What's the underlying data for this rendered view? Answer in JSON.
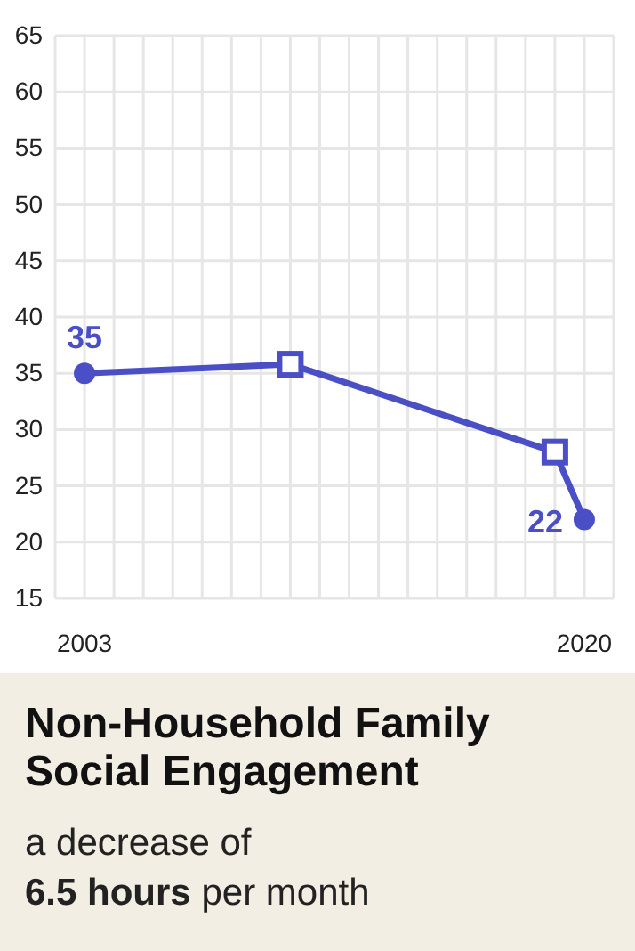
{
  "chart_data": {
    "type": "line",
    "title": "Non-Household Family Social Engagement",
    "subtitle": "a decrease of",
    "annotations": [
      "6.5 hours",
      "per month"
    ],
    "xlim": [
      2002,
      2021
    ],
    "xticks": [
      {
        "value": 2002,
        "label": null
      },
      2003,
      {
        "value": 2004,
        "label": null
      },
      {
        "value": 2005,
        "label": null
      },
      {
        "value": 2006,
        "label": null
      },
      {
        "value": 2007,
        "label": null
      },
      {
        "value": 2008,
        "label": null
      },
      {
        "value": 2009,
        "label": null
      },
      {
        "value": 2010,
        "label": null
      },
      {
        "value": 2011,
        "label": null
      },
      {
        "value": 2012,
        "label": null
      },
      {
        "value": 2013,
        "label": null
      },
      {
        "value": 2014,
        "label": null
      },
      {
        "value": 2015,
        "label": null
      },
      {
        "value": 2016,
        "label": null
      },
      {
        "value": 2017,
        "label": null
      },
      {
        "value": 2018,
        "label": null
      },
      {
        "value": 2019,
        "label": null
      },
      2020,
      {
        "value": 2021,
        "label": null
      }
    ],
    "ylim": [
      15,
      65
    ],
    "yticks": [
      15,
      20,
      25,
      30,
      35,
      40,
      45,
      50,
      55,
      60,
      65
    ],
    "grid": true,
    "series": [
      {
        "type": "line",
        "color": "#4b4fc6",
        "x": [
          2003,
          2010,
          2019,
          2020
        ],
        "values": [
          35,
          35.8,
          28,
          22
        ],
        "marker": "none"
      },
      {
        "type": "scatter",
        "color": "#4b4fc6",
        "x": [
          2003,
          2020
        ],
        "values": [
          35,
          22
        ],
        "marker": "circle",
        "value_labels": [
          "35",
          "22"
        ]
      },
      {
        "type": "scatter",
        "color": "#4b4fc6",
        "x": [
          2010,
          2019
        ],
        "values": [
          35.8,
          28
        ],
        "marker": "square"
      }
    ]
  }
}
